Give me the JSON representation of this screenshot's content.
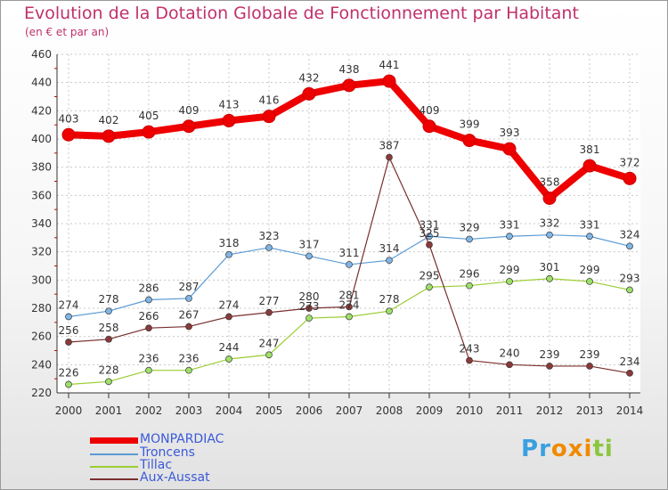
{
  "chart_data": {
    "type": "line",
    "title": "Evolution de la Dotation Globale de Fonctionnement par Habitant",
    "subtitle": "(en € et par an)",
    "x": [
      "2000",
      "2001",
      "2002",
      "2003",
      "2004",
      "2005",
      "2006",
      "2007",
      "2008",
      "2009",
      "2010",
      "2011",
      "2012",
      "2013",
      "2014"
    ],
    "yticks": [
      "220",
      "240",
      "260",
      "280",
      "300",
      "320",
      "340",
      "360",
      "380",
      "400",
      "420",
      "440",
      "460"
    ],
    "ylim": [
      220,
      460
    ],
    "series": [
      {
        "name": "MONPARDIAC",
        "color": "#ee0000",
        "values": [
          403,
          402,
          405,
          409,
          413,
          416,
          432,
          438,
          441,
          409,
          399,
          393,
          358,
          381,
          372
        ]
      },
      {
        "name": "Troncens",
        "color": "#5b9bd5",
        "values": [
          274,
          278,
          286,
          287,
          318,
          323,
          317,
          311,
          314,
          331,
          329,
          331,
          332,
          331,
          324
        ]
      },
      {
        "name": "Tillac",
        "color": "#9acd32",
        "values": [
          226,
          228,
          236,
          236,
          244,
          247,
          273,
          274,
          278,
          295,
          296,
          299,
          301,
          299,
          293
        ]
      },
      {
        "name": "Aux-Aussat",
        "color": "#7a2f2f",
        "values": [
          256,
          258,
          266,
          267,
          274,
          277,
          280,
          281,
          387,
          325,
          243,
          240,
          239,
          239,
          234
        ]
      }
    ],
    "labels": {
      "MONPARDIAC": [
        "403",
        "402",
        "405",
        "409",
        "413",
        "416",
        "432",
        "438",
        "441",
        "409",
        "399",
        "393",
        "358",
        "381",
        "372"
      ],
      "Troncens": [
        "274",
        "278",
        "286",
        "287",
        "318",
        "323",
        "317",
        "311",
        "314",
        "331",
        "329",
        "331",
        "332",
        "331",
        "324"
      ],
      "Tillac": [
        "226",
        "228",
        "236",
        "236",
        "244",
        "247",
        "273",
        "274",
        "278",
        "295",
        "296",
        "299",
        "301",
        "299",
        "293"
      ],
      "Aux-Aussat": [
        "256",
        "258",
        "266",
        "267",
        "274",
        "277",
        "280",
        "281",
        "387",
        "325",
        "243",
        "240",
        "239",
        "239",
        "234"
      ]
    }
  },
  "legend": {
    "items": [
      {
        "name": "MONPARDIAC",
        "color": "#ee0000"
      },
      {
        "name": "Troncens",
        "color": "#5b9bd5"
      },
      {
        "name": "Tillac",
        "color": "#9acd32"
      },
      {
        "name": "Aux-Aussat",
        "color": "#7a2f2f"
      }
    ]
  },
  "logo": {
    "text": "Proxiti",
    "letters": [
      {
        "ch": "P",
        "color": "#3aa0e0"
      },
      {
        "ch": "r",
        "color": "#3aa0e0"
      },
      {
        "ch": "o",
        "color": "#f08a00"
      },
      {
        "ch": "x",
        "color": "#f08a00"
      },
      {
        "ch": "i",
        "color": "#f08a00"
      },
      {
        "ch": "t",
        "color": "#8cc63f"
      },
      {
        "ch": "i",
        "color": "#8cc63f"
      }
    ]
  }
}
